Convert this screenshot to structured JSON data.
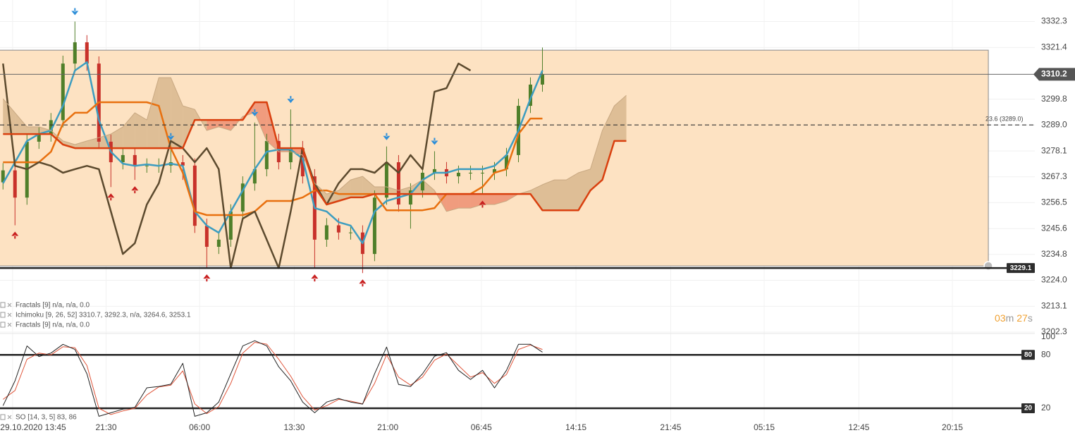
{
  "chart_data": [
    {
      "type": "candlestick",
      "xlim": [
        -0.25,
        85.9
      ],
      "ylim": [
        3202.0,
        3341.3
      ],
      "yticks": [
        3332.3,
        3321.4,
        3299.8,
        {
          "value": 3289.0,
          "label": "3289.0"
        },
        3278.1,
        3267.3,
        3256.5,
        3245.6,
        3234.8,
        {
          "value": 3224.0,
          "label": "3224.0"
        },
        3213.1,
        3202.3
      ],
      "xticks": [
        {
          "value": 0.8,
          "label": "29.10.2020 13:45"
        },
        {
          "value": 8.6,
          "label": "21:30"
        },
        {
          "value": 16.4,
          "label": "06:00"
        },
        {
          "value": 24.3,
          "label": "13:30"
        },
        {
          "value": 32.1,
          "label": "21:00"
        },
        {
          "value": 39.9,
          "label": "06:45"
        },
        {
          "value": 47.8,
          "label": "14:15"
        },
        {
          "value": 55.7,
          "label": "21:45"
        },
        {
          "value": 63.5,
          "label": "05:15"
        },
        {
          "value": 71.4,
          "label": "12:45"
        },
        {
          "value": 79.2,
          "label": "20:15"
        }
      ],
      "grid": true,
      "up_color": "#4f7f2a",
      "down_color": "#c8312a",
      "open": [
        3265.0,
        3270.0,
        3258.6,
        3282.0,
        3285.0,
        3291.0,
        3314.7,
        3323.6,
        3314.7,
        3282.0,
        3273.4,
        3276.4,
        3272.0,
        3272.0,
        3272.0,
        3273.4,
        3272.0,
        3246.8,
        3238.0,
        3241.0,
        3252.8,
        3264.5,
        3270.5,
        3282.3,
        3273.4,
        3279.3,
        3267.5,
        3241.0,
        3247.0,
        3244.0,
        3244.0,
        3235.0,
        3258.6,
        3273.4,
        3255.7,
        3261.6,
        3269.0,
        3270.5,
        3267.5,
        3269.0,
        3269.0,
        3269.0,
        3270.5,
        3276.4,
        3297.0,
        3305.9
      ],
      "high": [
        3273.0,
        3273.0,
        3285.0,
        3288.0,
        3294.0,
        3318.0,
        3332.3,
        3326.6,
        3317.7,
        3285.0,
        3279.4,
        3279.4,
        3275.0,
        3275.0,
        3280.0,
        3276.4,
        3275.0,
        3249.8,
        3244.0,
        3255.8,
        3267.5,
        3290.0,
        3285.3,
        3285.3,
        3295.5,
        3282.3,
        3270.5,
        3250.0,
        3250.0,
        3247.0,
        3247.0,
        3261.6,
        3280.0,
        3276.4,
        3264.6,
        3272.0,
        3278.0,
        3273.5,
        3272.0,
        3272.0,
        3272.0,
        3273.5,
        3279.4,
        3300.0,
        3308.9,
        3321.4
      ],
      "low": [
        3262.0,
        3247.0,
        3255.6,
        3279.0,
        3282.0,
        3288.0,
        3311.7,
        3311.7,
        3279.0,
        3263.0,
        3270.4,
        3266.0,
        3269.0,
        3269.0,
        3269.0,
        3266.0,
        3243.8,
        3229.1,
        3235.0,
        3238.0,
        3249.8,
        3261.5,
        3267.5,
        3270.4,
        3270.4,
        3264.5,
        3229.1,
        3238.0,
        3241.0,
        3241.0,
        3227.0,
        3232.0,
        3255.6,
        3252.7,
        3245.6,
        3258.6,
        3266.0,
        3264.5,
        3264.5,
        3266.0,
        3260.0,
        3266.0,
        3267.5,
        3273.4,
        3294.0,
        3302.9
      ],
      "close": [
        3270.0,
        3258.6,
        3282.0,
        3285.0,
        3291.0,
        3314.7,
        3323.6,
        3314.7,
        3282.0,
        3273.4,
        3276.4,
        3272.0,
        3272.0,
        3272.0,
        3273.4,
        3272.0,
        3246.8,
        3238.0,
        3241.0,
        3252.8,
        3264.5,
        3270.5,
        3282.3,
        3273.4,
        3279.3,
        3267.5,
        3241.0,
        3247.0,
        3244.0,
        3244.0,
        3235.0,
        3258.6,
        3273.4,
        3255.7,
        3261.6,
        3269.0,
        3270.5,
        3267.5,
        3269.0,
        3269.0,
        3269.0,
        3270.5,
        3276.4,
        3297.0,
        3305.9,
        3310.2
      ],
      "series": [
        {
          "color": "#3d9dc0",
          "width": 2.5,
          "values": [
            3264.6,
            3273.4,
            3282.3,
            3285.2,
            3286.7,
            3297.0,
            3311.8,
            3315.3,
            3291.1,
            3277.8,
            3272.8,
            3271.9,
            3272.5,
            3271.9,
            3272.8,
            3271.9,
            3252.8,
            3246.9,
            3243.9,
            3252.8,
            3261.6,
            3270.5,
            3277.8,
            3278.7,
            3278.7,
            3274.9,
            3254.2,
            3252.8,
            3248.3,
            3246.9,
            3239.5,
            3252.8,
            3257.2,
            3258.7,
            3260.1,
            3266.0,
            3269.0,
            3269.0,
            3270.5,
            3270.5,
            3270.5,
            3271.9,
            3276.4,
            3286.7,
            3300.0,
            3311.8
          ]
        },
        {
          "color": "#e8700f",
          "width": 2.5,
          "values": [
            3273.4,
            3273.4,
            3273.4,
            3273.4,
            3277.8,
            3289.6,
            3294.1,
            3294.1,
            3298.5,
            3298.5,
            3298.5,
            3298.5,
            3298.5,
            3297.0,
            3279.3,
            3269.0,
            3252.8,
            3251.3,
            3251.3,
            3251.3,
            3251.3,
            3252.8,
            3257.2,
            3257.2,
            3257.2,
            3258.7,
            3261.6,
            3261.6,
            3260.1,
            3260.1,
            3260.1,
            3260.1,
            3253.3,
            3253.3,
            3253.3,
            3253.3,
            3254.2,
            3260.1,
            3260.1,
            3260.1,
            3263.1,
            3269.0,
            3270.5,
            3285.2,
            3291.7,
            3291.7
          ]
        },
        {
          "color": "#5c4a2e",
          "width": 2.5,
          "values": [
            3314.7,
            3271.9,
            3270.5,
            3273.4,
            3271.9,
            3269.0,
            3270.5,
            3271.9,
            3270.5,
            3252.8,
            3235.0,
            3239.5,
            3255.7,
            3264.6,
            3282.3,
            3279.3,
            3273.4,
            3279.3,
            3270.5,
            3229.1,
            3249.8,
            3252.8,
            3241.0,
            3229.1,
            3252.8,
            3279.3,
            3264.6,
            3255.7,
            3264.6,
            3270.5,
            3270.5,
            3269.0,
            3273.4,
            3269.0,
            3276.4,
            3270.5,
            3302.9,
            3304.4,
            3314.7,
            3311.8,
            null,
            null,
            null,
            null,
            null,
            null
          ]
        },
        {
          "color": "#c8a882",
          "width": 1,
          "values": [
            3300.0,
            3294.1,
            3288.2,
            3288.2,
            3286.7,
            3282.3,
            3280.8,
            3282.3,
            3283.7,
            3285.2,
            3288.2,
            3294.1,
            3291.1,
            3308.8,
            3308.8,
            3297.0,
            3295.5,
            3286.7,
            3288.2,
            3286.7,
            3292.6,
            3294.1,
            3282.3,
            3277.8,
            3277.8,
            3276.4,
            3264.6,
            3260.1,
            3261.6,
            3266.0,
            3267.5,
            3263.1,
            3263.1,
            3261.6,
            3263.1,
            3266.0,
            3261.6,
            3252.8,
            3254.2,
            3254.2,
            3255.7,
            3255.7,
            3257.2,
            3260.1,
            3261.6,
            3264.0,
            3266.0,
            3266.0,
            3269.0,
            3270.5,
            3286.7,
            3297.0,
            3301.4
          ]
        },
        {
          "color": "#d9400f",
          "width": 2.5,
          "values": [
            3285.2,
            3285.2,
            3285.2,
            3285.2,
            3285.2,
            3280.8,
            3279.3,
            3279.3,
            3279.3,
            3279.3,
            3279.3,
            3279.3,
            3279.3,
            3279.3,
            3279.3,
            3279.3,
            3291.1,
            3291.1,
            3291.1,
            3291.1,
            3291.1,
            3298.5,
            3298.5,
            3279.3,
            3279.3,
            3279.3,
            3263.1,
            3255.7,
            3257.2,
            3258.7,
            3258.7,
            3260.1,
            3260.1,
            3260.1,
            3260.1,
            3260.1,
            3260.1,
            3260.1,
            3260.1,
            3260.1,
            3260.1,
            3260.1,
            3260.1,
            3260.1,
            3260.1,
            3253.3,
            3253.3,
            3253.3,
            3253.3,
            3261.6,
            3266.0,
            3282.3,
            3282.3
          ]
        }
      ],
      "cloud": {
        "between": [
          3,
          4
        ],
        "colors": [
          "rgba(196,160,115,0.55)",
          "rgba(232,110,80,0.6)"
        ]
      },
      "fractals_up": [
        1,
        9,
        11,
        17,
        26,
        30,
        40
      ],
      "fractals_down": [
        6,
        14,
        21,
        24,
        32,
        36
      ],
      "fractal_colors": [
        "#c81e1e",
        "#2f8fd8"
      ],
      "rectangle": {
        "x_end": 82.2,
        "top": 3320.3,
        "bottom": 3230.0,
        "color": "#fde2c2"
      },
      "last_price": 3310.2,
      "level": {
        "value": 3229.1,
        "label": "3229.1"
      },
      "fib": {
        "value": 3289.0,
        "label": "23.6 (3289.0)"
      },
      "legend": [
        "Fractals [9] n/a, n/a, 0.0",
        "Ichimoku [9, 26, 52] 3310.7, 3292.3, n/a, 3264.6, 3253.1",
        "Fractals [9] n/a, n/a, 0.0"
      ],
      "countdown": {
        "minutes": "03",
        "minutes_unit": "m",
        "seconds": "27",
        "seconds_unit": "s"
      }
    },
    {
      "type": "line",
      "ylim": [
        5,
        104.7
      ],
      "yticks": [
        20,
        80,
        100
      ],
      "levels": [
        80,
        20
      ],
      "legend": "SO [14, 3, 5] 83, 86",
      "series": [
        {
          "color": "#222222",
          "values": [
            23,
            50.8,
            90,
            78,
            82,
            91.8,
            86,
            58.7,
            11,
            15,
            19,
            21,
            43,
            44.5,
            47,
            70.5,
            11,
            15,
            27,
            58.7,
            90,
            95.8,
            90,
            66.6,
            50.8,
            27,
            15,
            27,
            31,
            27,
            24.7,
            58.7,
            88.7,
            46.8,
            44.5,
            58.7,
            78.4,
            82.4,
            62.6,
            52.4,
            62.6,
            42.9,
            62.6,
            91.8,
            91.8,
            83
          ]
        },
        {
          "color": "#e0553a",
          "values": [
            30,
            40,
            75,
            82,
            80,
            89,
            88,
            68,
            20,
            13,
            17,
            20,
            35,
            44,
            46,
            62,
            25,
            14,
            22,
            48,
            82,
            94,
            92,
            75,
            56,
            33,
            18,
            23,
            30,
            28,
            25,
            48,
            80,
            55,
            46,
            55,
            74,
            81,
            68,
            55,
            60,
            48,
            58,
            86,
            91,
            86
          ]
        }
      ]
    }
  ]
}
